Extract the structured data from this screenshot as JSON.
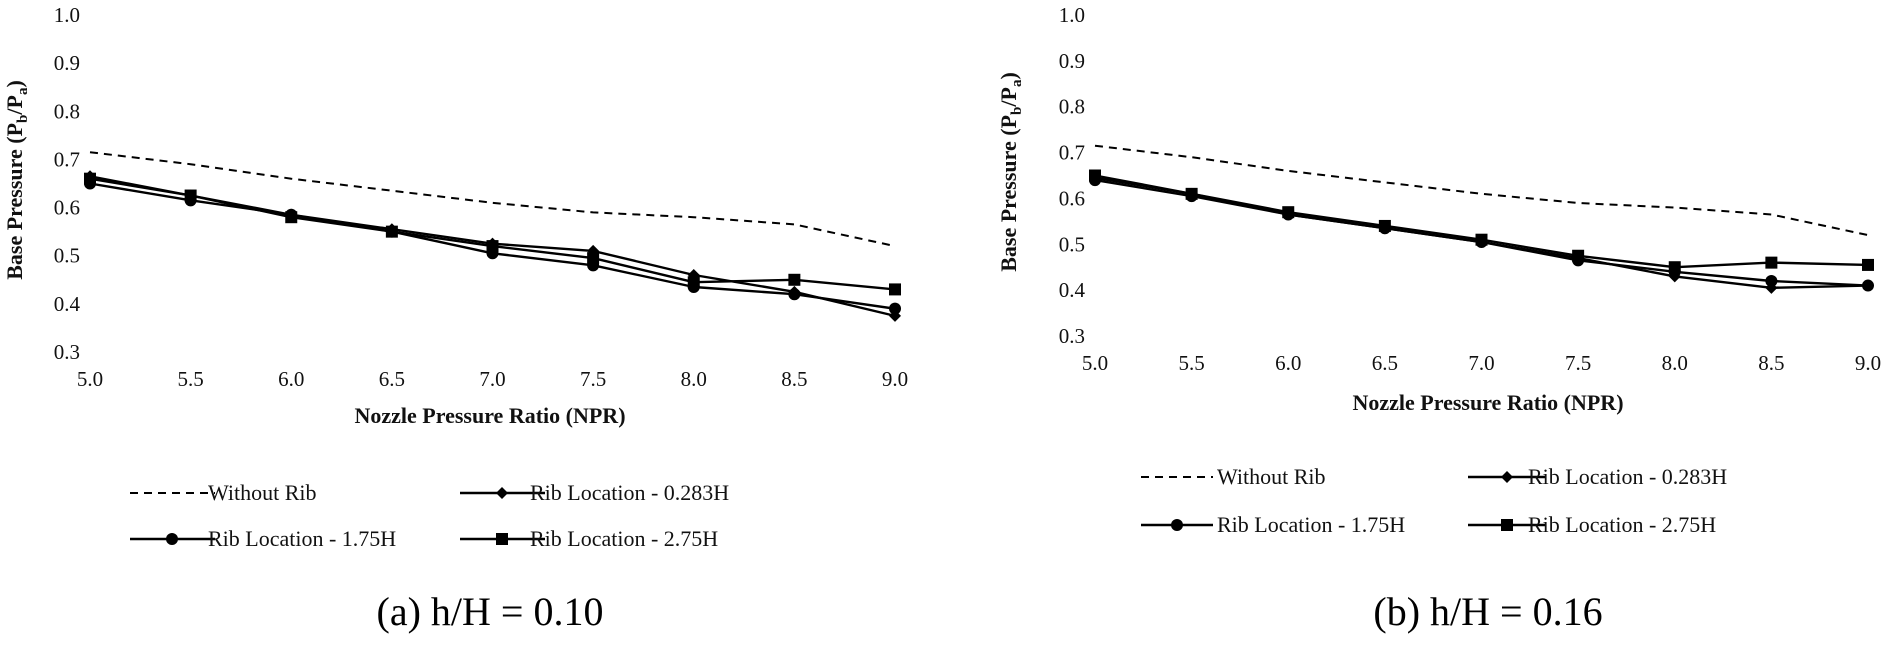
{
  "chart_data": [
    {
      "type": "line",
      "panel": "a",
      "caption": "(a) h/H = 0.10",
      "xlabel": "Nozzle Pressure Ratio (NPR)",
      "ylabel_main": "Base Pressure (P",
      "ylabel_sub_b": "b",
      "ylabel_mid": "/P",
      "ylabel_sub_a": "a",
      "ylabel_end": ")",
      "x": [
        5.0,
        5.5,
        6.0,
        6.5,
        7.0,
        7.5,
        8.0,
        8.5,
        9.0
      ],
      "x_tick_labels": [
        "5.0",
        "5.5",
        "6.0",
        "6.5",
        "7.0",
        "7.5",
        "8.0",
        "8.5",
        "9.0"
      ],
      "y_tick_values": [
        0.3,
        0.4,
        0.5,
        0.6,
        0.7,
        0.8,
        0.9,
        1.0
      ],
      "y_tick_labels": [
        "0.3",
        "0.4",
        "0.5",
        "0.6",
        "0.7",
        "0.8",
        "0.9",
        "1.0"
      ],
      "xlim": [
        5.0,
        9.0
      ],
      "ylim": [
        0.3,
        1.0
      ],
      "grid": false,
      "legend_position": "bottom",
      "series": [
        {
          "name": "Without Rib",
          "style": "dashed",
          "marker": "none",
          "values": [
            0.715,
            0.69,
            0.66,
            0.635,
            0.61,
            0.59,
            0.58,
            0.565,
            0.52
          ]
        },
        {
          "name": "Rib Location - 0.283H",
          "style": "solid",
          "marker": "diamond",
          "values": [
            0.665,
            0.625,
            0.585,
            0.555,
            0.525,
            0.51,
            0.46,
            0.425,
            0.375
          ]
        },
        {
          "name": "Rib Location - 1.75H",
          "style": "solid",
          "marker": "circle",
          "values": [
            0.65,
            0.615,
            0.585,
            0.55,
            0.505,
            0.48,
            0.435,
            0.42,
            0.39
          ]
        },
        {
          "name": "Rib Location - 2.75H",
          "style": "solid",
          "marker": "square",
          "values": [
            0.66,
            0.625,
            0.58,
            0.55,
            0.52,
            0.495,
            0.445,
            0.45,
            0.43
          ]
        }
      ]
    },
    {
      "type": "line",
      "panel": "b",
      "caption": "(b) h/H = 0.16",
      "xlabel": "Nozzle Pressure Ratio (NPR)",
      "ylabel_main": "Base Pressure (P",
      "ylabel_sub_b": "b",
      "ylabel_mid": "/P",
      "ylabel_sub_a": "a",
      "ylabel_end": ")",
      "x": [
        5.0,
        5.5,
        6.0,
        6.5,
        7.0,
        7.5,
        8.0,
        8.5,
        9.0
      ],
      "x_tick_labels": [
        "5.0",
        "5.5",
        "6.0",
        "6.5",
        "7.0",
        "7.5",
        "8.0",
        "8.5",
        "9.0"
      ],
      "y_tick_values": [
        0.3,
        0.4,
        0.5,
        0.6,
        0.7,
        0.8,
        0.9,
        1.0
      ],
      "y_tick_labels": [
        "0.3",
        "0.4",
        "0.5",
        "0.6",
        "0.7",
        "0.8",
        "0.9",
        "1.0"
      ],
      "xlim": [
        5.0,
        9.0
      ],
      "ylim": [
        0.3,
        1.0
      ],
      "grid": false,
      "legend_position": "bottom",
      "series": [
        {
          "name": "Without Rib",
          "style": "dashed",
          "marker": "none",
          "values": [
            0.715,
            0.69,
            0.66,
            0.635,
            0.61,
            0.59,
            0.58,
            0.565,
            0.52
          ]
        },
        {
          "name": "Rib Location - 0.283H",
          "style": "solid",
          "marker": "diamond",
          "values": [
            0.645,
            0.61,
            0.565,
            0.535,
            0.505,
            0.47,
            0.43,
            0.405,
            0.41
          ]
        },
        {
          "name": "Rib Location - 1.75H",
          "style": "solid",
          "marker": "circle",
          "values": [
            0.64,
            0.605,
            0.565,
            0.535,
            0.505,
            0.465,
            0.44,
            0.42,
            0.41
          ]
        },
        {
          "name": "Rib Location - 2.75H",
          "style": "solid",
          "marker": "square",
          "values": [
            0.65,
            0.61,
            0.57,
            0.54,
            0.51,
            0.475,
            0.45,
            0.46,
            0.455
          ]
        }
      ]
    }
  ]
}
